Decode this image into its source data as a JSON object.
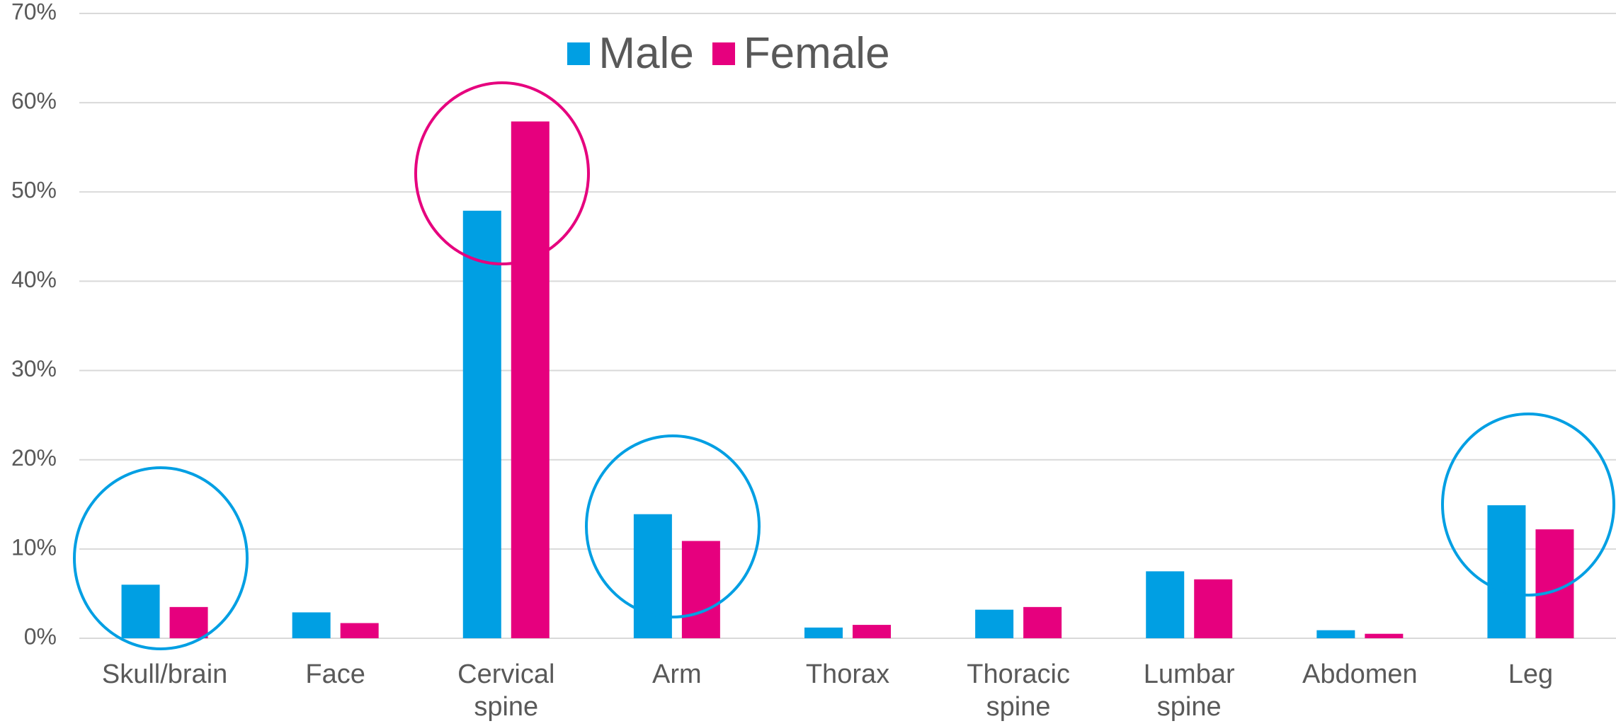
{
  "chart_data": {
    "type": "bar",
    "categories": [
      "Skull/brain",
      "Face",
      "Cervical spine",
      "Arm",
      "Thorax",
      "Thoracic spine",
      "Lumbar spine",
      "Abdomen",
      "Leg"
    ],
    "series": [
      {
        "name": "Male",
        "color": "#009fe3",
        "values": [
          6.0,
          2.9,
          47.9,
          13.9,
          1.2,
          3.2,
          7.5,
          0.9,
          14.9
        ]
      },
      {
        "name": "Female",
        "color": "#e6007e",
        "values": [
          3.5,
          1.7,
          57.9,
          10.9,
          1.5,
          3.5,
          6.6,
          0.5,
          12.2
        ]
      }
    ],
    "ylim": [
      0,
      70
    ],
    "yticks": [
      {
        "value": 0,
        "label": "0%"
      },
      {
        "value": 10,
        "label": "10%"
      },
      {
        "value": 20,
        "label": "20%"
      },
      {
        "value": 30,
        "label": "30%"
      },
      {
        "value": 40,
        "label": "40%"
      },
      {
        "value": 50,
        "label": "50%"
      },
      {
        "value": 60,
        "label": "60%"
      },
      {
        "value": 70,
        "label": "70%"
      }
    ],
    "grid": true,
    "legend": "top"
  }
}
